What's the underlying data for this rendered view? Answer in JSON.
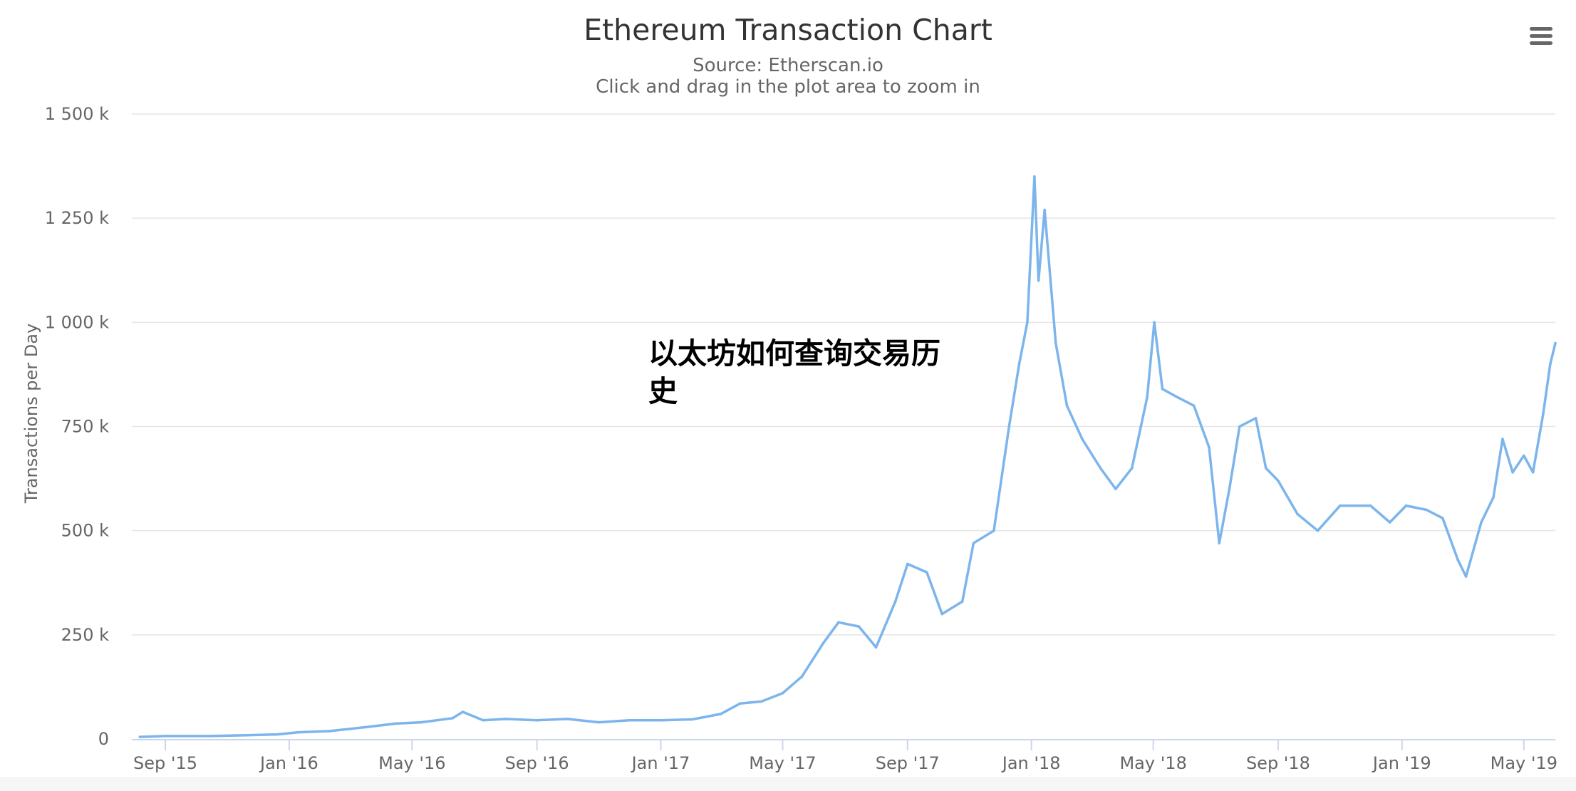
{
  "header": {
    "title": "Ethereum Transaction Chart",
    "subtitle_source": "Source: Etherscan.io",
    "subtitle_hint": "Click and drag in the plot area to zoom in"
  },
  "overlay": {
    "line1": "以太坊如何查询交易历",
    "line2": "史"
  },
  "menu": {
    "icon": "hamburger-menu-icon"
  },
  "colors": {
    "series": "#7cb5ec",
    "grid": "#e6e6e6",
    "axis": "#ccd6eb"
  },
  "chart_data": {
    "type": "line",
    "title": "Ethereum Transaction Chart",
    "subtitle": "Source: Etherscan.io",
    "xlabel": "",
    "ylabel": "Transactions per Day",
    "x_type": "datetime",
    "xlim": [
      "2015-07-30",
      "2019-06-01"
    ],
    "ylim": [
      0,
      1500000
    ],
    "y_ticks": [
      0,
      250000,
      500000,
      750000,
      1000000,
      1250000,
      1500000
    ],
    "y_tick_labels": [
      "0",
      "250 k",
      "500 k",
      "750 k",
      "1 000 k",
      "1 250 k",
      "1 500 k"
    ],
    "x_ticks": [
      "2015-09-01",
      "2016-01-01",
      "2016-05-01",
      "2016-09-01",
      "2017-01-01",
      "2017-05-01",
      "2017-09-01",
      "2018-01-01",
      "2018-05-01",
      "2018-09-01",
      "2019-01-01",
      "2019-05-01"
    ],
    "x_tick_labels": [
      "Sep '15",
      "Jan '16",
      "May '16",
      "Sep '16",
      "Jan '17",
      "May '17",
      "Sep '17",
      "Jan '18",
      "May '18",
      "Sep '18",
      "Jan '19",
      "May '19"
    ],
    "grid": true,
    "legend": false,
    "series": [
      {
        "points": [
          [
            "2015-08-07",
            5000
          ],
          [
            "2015-09-01",
            7000
          ],
          [
            "2015-10-15",
            7000
          ],
          [
            "2015-11-20",
            9000
          ],
          [
            "2015-12-20",
            11000
          ],
          [
            "2016-01-10",
            16000
          ],
          [
            "2016-02-10",
            19000
          ],
          [
            "2016-03-15",
            28000
          ],
          [
            "2016-04-15",
            37000
          ],
          [
            "2016-05-10",
            40000
          ],
          [
            "2016-06-10",
            50000
          ],
          [
            "2016-06-20",
            65000
          ],
          [
            "2016-07-10",
            45000
          ],
          [
            "2016-08-01",
            48000
          ],
          [
            "2016-09-01",
            45000
          ],
          [
            "2016-10-01",
            48000
          ],
          [
            "2016-11-01",
            40000
          ],
          [
            "2016-12-01",
            45000
          ],
          [
            "2017-01-01",
            45000
          ],
          [
            "2017-02-01",
            47000
          ],
          [
            "2017-03-01",
            60000
          ],
          [
            "2017-03-20",
            85000
          ],
          [
            "2017-04-10",
            90000
          ],
          [
            "2017-05-01",
            110000
          ],
          [
            "2017-05-20",
            150000
          ],
          [
            "2017-06-10",
            230000
          ],
          [
            "2017-06-25",
            280000
          ],
          [
            "2017-07-15",
            270000
          ],
          [
            "2017-08-01",
            220000
          ],
          [
            "2017-08-20",
            330000
          ],
          [
            "2017-09-01",
            420000
          ],
          [
            "2017-09-20",
            400000
          ],
          [
            "2017-10-05",
            300000
          ],
          [
            "2017-10-25",
            330000
          ],
          [
            "2017-11-05",
            470000
          ],
          [
            "2017-11-25",
            500000
          ],
          [
            "2017-12-10",
            750000
          ],
          [
            "2017-12-20",
            900000
          ],
          [
            "2017-12-28",
            1000000
          ],
          [
            "2018-01-04",
            1350000
          ],
          [
            "2018-01-08",
            1100000
          ],
          [
            "2018-01-14",
            1270000
          ],
          [
            "2018-01-25",
            950000
          ],
          [
            "2018-02-05",
            800000
          ],
          [
            "2018-02-20",
            720000
          ],
          [
            "2018-03-10",
            650000
          ],
          [
            "2018-03-25",
            600000
          ],
          [
            "2018-04-10",
            650000
          ],
          [
            "2018-04-25",
            820000
          ],
          [
            "2018-05-02",
            1000000
          ],
          [
            "2018-05-10",
            840000
          ],
          [
            "2018-05-25",
            820000
          ],
          [
            "2018-06-10",
            800000
          ],
          [
            "2018-06-25",
            700000
          ],
          [
            "2018-07-05",
            470000
          ],
          [
            "2018-07-15",
            600000
          ],
          [
            "2018-07-25",
            750000
          ],
          [
            "2018-08-10",
            770000
          ],
          [
            "2018-08-20",
            650000
          ],
          [
            "2018-09-01",
            620000
          ],
          [
            "2018-09-20",
            540000
          ],
          [
            "2018-10-10",
            500000
          ],
          [
            "2018-11-01",
            560000
          ],
          [
            "2018-12-01",
            560000
          ],
          [
            "2018-12-20",
            520000
          ],
          [
            "2019-01-05",
            560000
          ],
          [
            "2019-01-25",
            550000
          ],
          [
            "2019-02-10",
            530000
          ],
          [
            "2019-02-25",
            430000
          ],
          [
            "2019-03-05",
            390000
          ],
          [
            "2019-03-20",
            520000
          ],
          [
            "2019-04-01",
            580000
          ],
          [
            "2019-04-10",
            720000
          ],
          [
            "2019-04-20",
            640000
          ],
          [
            "2019-05-01",
            680000
          ],
          [
            "2019-05-10",
            640000
          ],
          [
            "2019-05-20",
            780000
          ],
          [
            "2019-05-27",
            900000
          ],
          [
            "2019-06-01",
            950000
          ]
        ]
      }
    ]
  }
}
